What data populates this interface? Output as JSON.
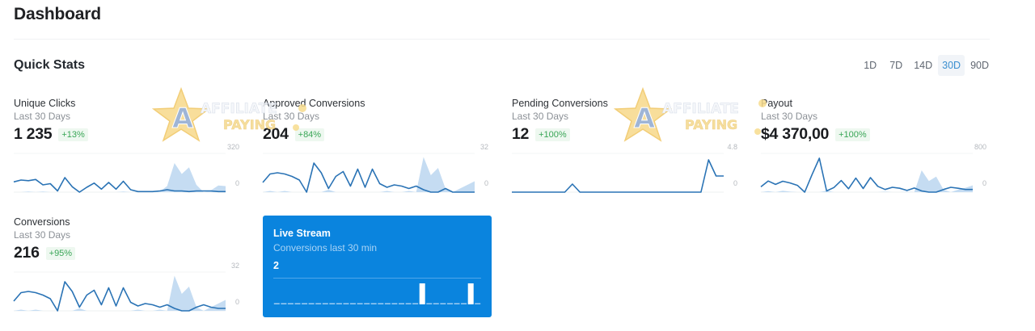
{
  "header": {
    "title": "Dashboard"
  },
  "section": {
    "title": "Quick Stats"
  },
  "range_tabs": [
    {
      "label": "1D",
      "active": false
    },
    {
      "label": "7D",
      "active": false
    },
    {
      "label": "14D",
      "active": false
    },
    {
      "label": "30D",
      "active": true
    },
    {
      "label": "90D",
      "active": false
    }
  ],
  "colors": {
    "line": "#2a73b5",
    "area": "#c5dcf2",
    "badge_text": "#3aa657",
    "badge_bg": "#eef8f0",
    "live_bg": "#0a84de",
    "active_tab": "#3b8fd0"
  },
  "stats": [
    {
      "label": "Unique Clicks",
      "period": "Last 30 Days",
      "value": "1 235",
      "change": "+13%",
      "axis_max": "320",
      "axis_min": "0"
    },
    {
      "label": "Approved Conversions",
      "period": "Last 30 Days",
      "value": "204",
      "change": "+84%",
      "axis_max": "32",
      "axis_min": "0"
    },
    {
      "label": "Pending Conversions",
      "period": "Last 30 Days",
      "value": "12",
      "change": "+100%",
      "axis_max": "4.8",
      "axis_min": "0"
    },
    {
      "label": "Payout",
      "period": "Last 30 Days",
      "value": "$4 370,00",
      "change": "+100%",
      "axis_max": "800",
      "axis_min": "0"
    },
    {
      "label": "Conversions",
      "period": "Last 30 Days",
      "value": "216",
      "change": "+95%",
      "axis_max": "32",
      "axis_min": "0"
    }
  ],
  "live_stream": {
    "title": "Live Stream",
    "subtitle": "Conversions last 30 min",
    "count": "2"
  },
  "watermark": {
    "line1": "AFFILIATE",
    "line2": "PAYING"
  },
  "chart_data": [
    {
      "type": "area",
      "title": "Unique Clicks",
      "ylim": [
        0,
        320
      ],
      "series": [
        {
          "name": "current",
          "style": "line",
          "values": [
            85,
            100,
            95,
            105,
            60,
            70,
            10,
            120,
            45,
            0,
            40,
            75,
            25,
            80,
            25,
            90,
            20,
            5,
            5,
            5,
            10,
            20,
            10,
            10,
            5,
            10,
            10,
            10,
            5,
            5
          ]
        },
        {
          "name": "previous",
          "style": "area",
          "values": [
            0,
            0,
            5,
            0,
            5,
            0,
            0,
            0,
            0,
            0,
            0,
            0,
            0,
            0,
            0,
            5,
            0,
            0,
            0,
            0,
            5,
            50,
            240,
            150,
            205,
            60,
            0,
            15,
            55,
            50
          ]
        }
      ]
    },
    {
      "type": "area",
      "title": "Approved Conversions",
      "ylim": [
        0,
        32
      ],
      "series": [
        {
          "name": "current",
          "style": "line",
          "values": [
            8,
            15,
            16,
            15,
            13,
            10,
            0,
            24,
            16,
            3,
            13,
            17,
            5,
            19,
            4,
            19,
            7,
            4,
            6,
            5,
            3,
            5,
            2,
            0,
            0,
            3,
            0,
            0,
            0,
            0
          ]
        },
        {
          "name": "previous",
          "style": "area",
          "values": [
            0,
            1,
            0,
            1,
            0,
            0,
            0,
            0,
            0,
            2,
            0,
            0,
            0,
            0,
            0,
            0,
            0,
            1,
            0,
            0,
            1,
            0,
            29,
            14,
            20,
            3,
            0,
            3,
            6,
            9
          ]
        }
      ]
    },
    {
      "type": "line",
      "title": "Pending Conversions",
      "ylim": [
        0,
        4.8
      ],
      "series": [
        {
          "name": "current",
          "style": "line",
          "values": [
            0,
            0,
            0,
            0,
            0,
            0,
            0,
            0,
            1,
            0,
            0,
            0,
            0,
            0,
            0,
            0,
            0,
            0,
            0,
            0,
            0,
            0,
            0,
            0,
            0,
            0,
            4,
            2,
            2
          ]
        }
      ]
    },
    {
      "type": "area",
      "title": "Payout",
      "ylim": [
        0,
        800
      ],
      "series": [
        {
          "name": "current",
          "style": "line",
          "values": [
            110,
            230,
            160,
            225,
            190,
            140,
            0,
            360,
            700,
            25,
            95,
            240,
            70,
            290,
            75,
            300,
            120,
            55,
            100,
            80,
            35,
            85,
            25,
            0,
            0,
            55,
            100,
            80,
            55,
            55
          ]
        },
        {
          "name": "previous",
          "style": "area",
          "values": [
            0,
            20,
            0,
            30,
            10,
            0,
            0,
            0,
            0,
            30,
            0,
            0,
            0,
            0,
            0,
            0,
            0,
            10,
            0,
            0,
            10,
            0,
            450,
            230,
            320,
            50,
            0,
            50,
            90,
            140
          ]
        }
      ]
    },
    {
      "type": "area",
      "title": "Conversions",
      "ylim": [
        0,
        32
      ],
      "series": [
        {
          "name": "current",
          "style": "line",
          "values": [
            8,
            15,
            16,
            15,
            13,
            10,
            0,
            24,
            16,
            3,
            13,
            17,
            5,
            19,
            4,
            19,
            7,
            4,
            6,
            5,
            3,
            5,
            2,
            0,
            0,
            3,
            5,
            3,
            2,
            2
          ]
        },
        {
          "name": "previous",
          "style": "area",
          "values": [
            0,
            1,
            0,
            1,
            0,
            0,
            0,
            0,
            0,
            2,
            0,
            0,
            0,
            0,
            0,
            0,
            0,
            1,
            0,
            0,
            1,
            0,
            29,
            14,
            20,
            3,
            0,
            3,
            6,
            9
          ]
        }
      ]
    },
    {
      "type": "bar",
      "title": "Live Stream - Conversions last 30 min",
      "ylim": [
        0,
        1
      ],
      "values": [
        0,
        0,
        0,
        0,
        0,
        0,
        0,
        0,
        0,
        0,
        0,
        0,
        0,
        0,
        0,
        0,
        0,
        0,
        0,
        0,
        0,
        1,
        0,
        0,
        0,
        0,
        0,
        0,
        1,
        0
      ]
    }
  ]
}
